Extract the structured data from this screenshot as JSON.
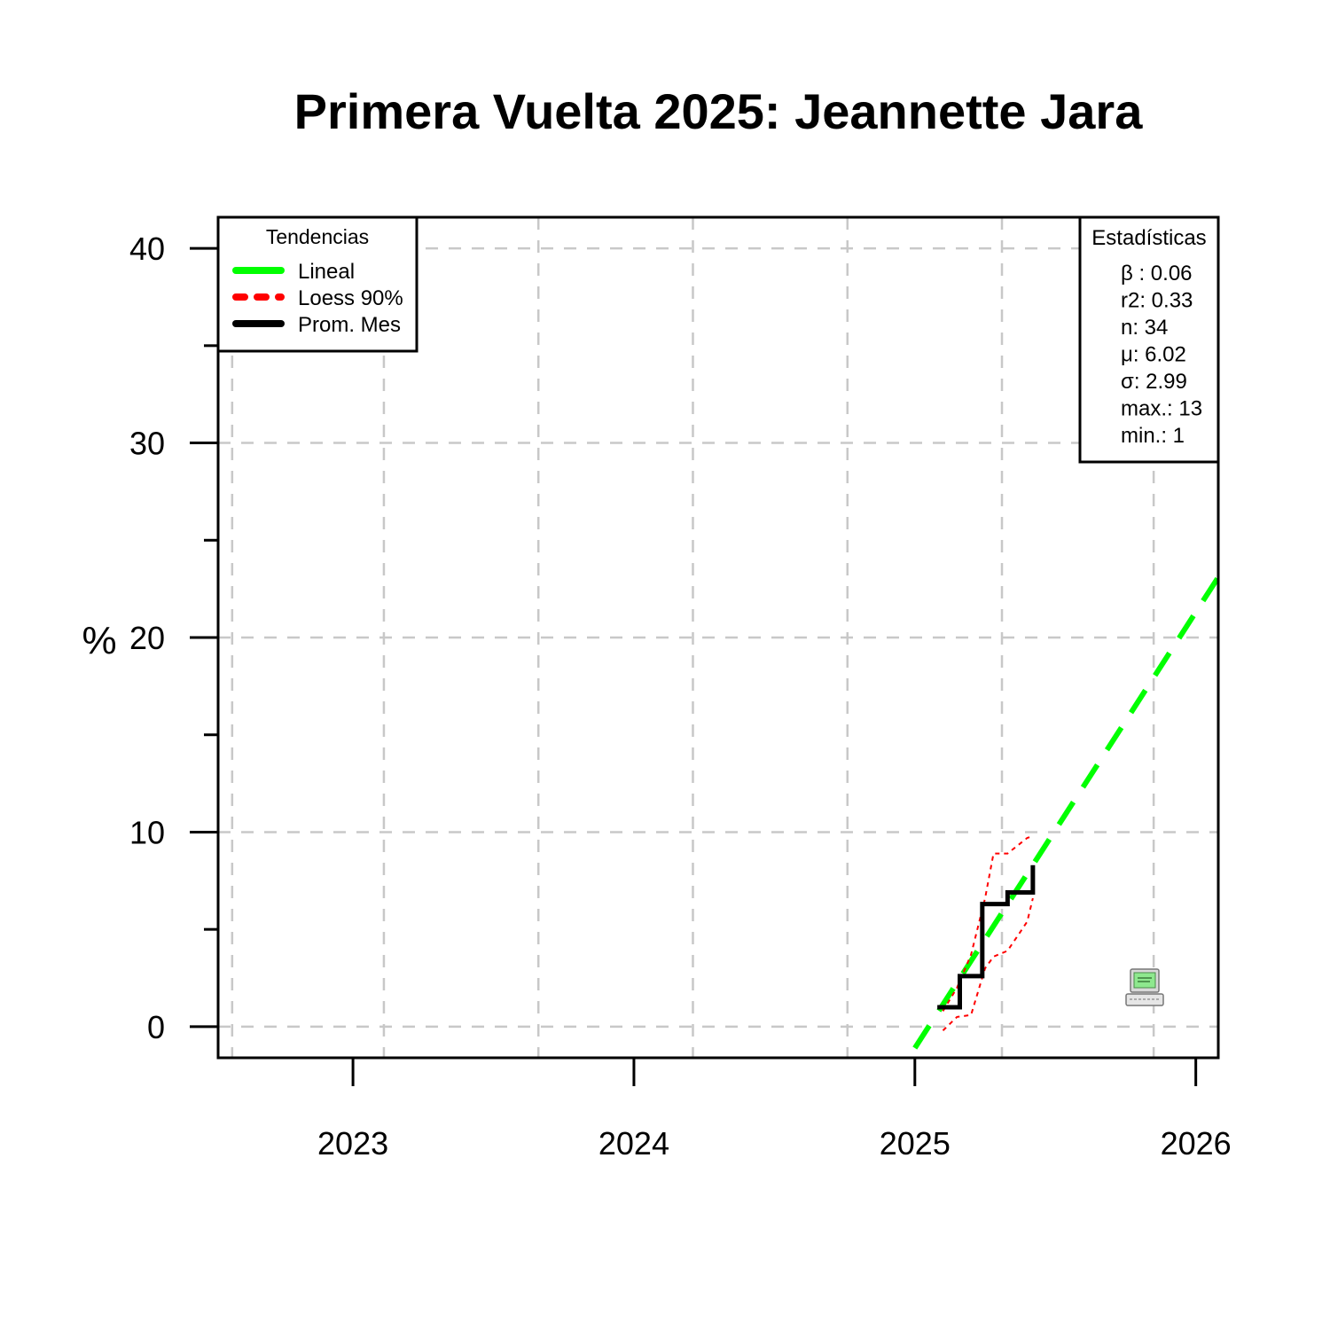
{
  "chart_data": {
    "type": "line",
    "title": "Primera Vuelta 2025: Jeannette Jara",
    "xlabel": "",
    "ylabel": "%",
    "xlim": [
      2022.52,
      2026.08
    ],
    "ylim": [
      -1.6,
      41.6
    ],
    "x_ticks": [
      2023,
      2024,
      2025,
      2026
    ],
    "x_tick_labels": [
      "2023",
      "2024",
      "2025",
      "2026"
    ],
    "y_ticks": [
      0,
      10,
      20,
      30,
      40
    ],
    "y_tick_labels": [
      "0",
      "10",
      "20",
      "30",
      "40"
    ],
    "y_minor_ticks": [
      5,
      15,
      25,
      35
    ],
    "grid": true,
    "grid_x": [
      2022.57,
      2023.11,
      2023.66,
      2024.21,
      2024.76,
      2025.31,
      2025.85
    ],
    "grid_y": [
      0,
      10,
      20,
      30,
      40
    ],
    "legend": {
      "title": "Tendencias",
      "position": "top-left",
      "items": [
        {
          "label": "Lineal",
          "color": "#00ff00",
          "style": "solid"
        },
        {
          "label": "Loess 90%",
          "color": "#ff0000",
          "style": "dashed"
        },
        {
          "label": "Prom. Mes",
          "color": "#000000",
          "style": "solid"
        }
      ]
    },
    "stats": {
      "title": "Estadísticas",
      "position": "top-right",
      "lines": [
        "β : 0.06",
        "r2: 0.33",
        "n: 34",
        "μ: 6.02",
        "σ: 2.99",
        "max.: 13",
        "min.: 1"
      ]
    },
    "series": [
      {
        "name": "Lineal",
        "color": "#00ff00",
        "x": [
          2025.0,
          2026.08
        ],
        "y": [
          -1.1,
          23.1
        ]
      },
      {
        "name": "Loess 90%",
        "color": "#ff0000",
        "band": {
          "x": [
            2025.1,
            2025.15,
            2025.2,
            2025.25,
            2025.28,
            2025.33,
            2025.4,
            2025.42
          ],
          "upper": [
            0.8,
            2.0,
            3.7,
            6.6,
            8.9,
            8.9,
            9.7,
            9.8
          ],
          "lower": [
            -0.2,
            0.5,
            0.6,
            3.0,
            3.6,
            3.9,
            5.4,
            6.6
          ]
        }
      },
      {
        "name": "Prom. Mes",
        "color": "#000000",
        "step": true,
        "x": [
          2025.08,
          2025.16,
          2025.24,
          2025.33,
          2025.42
        ],
        "y": [
          1.0,
          2.6,
          6.3,
          6.9,
          8.3
        ]
      }
    ],
    "annotation_icon": "computer-icon"
  }
}
